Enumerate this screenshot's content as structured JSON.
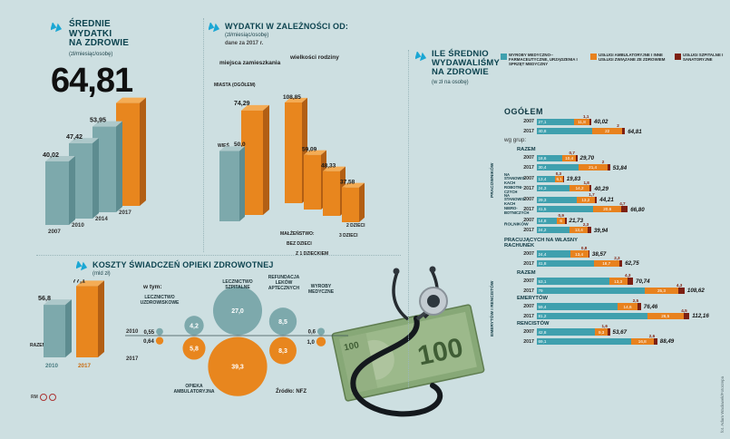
{
  "page": {
    "bg": "#cddfe1"
  },
  "avg_section": {
    "title_lines": [
      "ŚREDNIE",
      "WYDATKI",
      "NA ZDROWIE"
    ],
    "subtitle": "(zł/miesiąc/osobę)",
    "big_value": "64,81"
  },
  "depends_section": {
    "title": "WYDATKI W ZALEŻNOŚCI OD:",
    "subtitle": "(zł/miesiąc/osobę)",
    "note": "dane za 2017 r.",
    "residence_label": "miejsca zamieszkania",
    "family_label": "wielkości rodziny",
    "city_label": "MIASTA (OGÓŁEM)",
    "village_label": "WIEŚ",
    "family_prefix": "MAŁŻEŃSTWO:",
    "family_cats": [
      "BEZ DZIECI",
      "Z 1 DZIECKIEM",
      "2 DZIECI",
      "3 DZIECI"
    ]
  },
  "costs_section": {
    "title": "KOSZTY ŚWIADCZEŃ OPIEKI ZDROWOTNEJ",
    "unit": "(mld zł)",
    "razem_label": "RAZEM",
    "in_that": "w tym:",
    "years": [
      "2010",
      "2017"
    ],
    "cat_labels": [
      [
        "LECZNICTWO",
        "UZDROWISKOWE"
      ],
      [
        "OPIEKA",
        "AMBULATORYJNA"
      ],
      [
        "LECZNICTWO",
        "SZPITALNE"
      ],
      [
        "REFUNDACJA",
        "LEKÓW",
        "APTECZNYCH"
      ],
      [
        "WYROBY",
        "MEDYCZNE"
      ]
    ],
    "source": "Źródło: NFZ"
  },
  "spending_section": {
    "title_lines": [
      "ILE ŚREDNIO",
      "WYDAWALIŚMY",
      "NA ZDROWIE"
    ],
    "subtitle": "(w zł na osobę)",
    "wg_grup": "wg grup:",
    "legend": [
      {
        "label": "WYROBY MEDYCZNO--FARMACEUTYCZNE, URZĄDZENIA I SPRZĘT MEDYCZNY",
        "color": "#3fa0ae"
      },
      {
        "label": "USŁUGI AMBULATORYJNE I INNE USŁUGI ZWIĄZANE ZE ZDROWIEM",
        "color": "#e8821e"
      },
      {
        "label": "USŁUGI SZPITALNE I SANATORYJNE",
        "color": "#7d2012"
      }
    ]
  },
  "photo": {
    "banknote_value": "100"
  },
  "credits": {
    "left": "RM",
    "right": "fot. Adam Wacławek/Fotorzepa"
  },
  "chart_data": [
    {
      "id": "avg-spending",
      "type": "bar",
      "title": "ŚREDNIE WYDATKI NA ZDROWIE (zł/miesiąc/osobę)",
      "categories": [
        "2007",
        "2010",
        "2014",
        "2017"
      ],
      "values": [
        40.02,
        47.42,
        53.95,
        64.81
      ],
      "labels": [
        "40,02",
        "47,42",
        "53,95",
        ""
      ],
      "highlight_category": "2017"
    },
    {
      "id": "by-residence",
      "type": "bar",
      "title": "wydatki wg miejsca zamieszkania, 2017 (zł/miesiąc/osobę)",
      "categories": [
        "WIEŚ",
        "MIASTA (OGÓŁEM)"
      ],
      "values": [
        50.0,
        74.29
      ],
      "labels": [
        "50,0",
        "74,29"
      ]
    },
    {
      "id": "by-family-size",
      "type": "bar",
      "title": "wydatki wg wielkości rodziny, 2017 (zł/miesiąc/osobę)",
      "categories": [
        "MAŁŻEŃSTWO BEZ DZIECI",
        "Z 1 DZIECKIEM",
        "2 DZIECI",
        "3 DZIECI"
      ],
      "values": [
        108.85,
        59.09,
        48.33,
        37.58
      ],
      "labels": [
        "108,85",
        "59,09",
        "48,33",
        "37,58"
      ]
    },
    {
      "id": "costs-nfz",
      "type": "bubble",
      "title": "KOSZTY ŚWIADCZEŃ OPIEKI ZDROWOTNEJ (mld zł)",
      "categories": [
        "RAZEM",
        "LECZNICTWO UZDROWISKOWE",
        "OPIEKA AMBULATORYJNA",
        "LECZNICTWO SZPITALNE",
        "REFUNDACJA LEKÓW APTECZNYCH",
        "WYROBY MEDYCZNE"
      ],
      "series": [
        {
          "name": "2010",
          "values": [
            56.8,
            0.55,
            4.2,
            27.0,
            8.5,
            0.6
          ],
          "labels": [
            "56,8",
            "0,55",
            "4,2",
            "27,0",
            "8,5",
            "0,6"
          ]
        },
        {
          "name": "2017",
          "values": [
            77.1,
            0.64,
            5.8,
            39.3,
            8.3,
            1.0
          ],
          "labels": [
            "77,1",
            "0,64",
            "5,8",
            "39,3",
            "8,3",
            "1,0"
          ]
        }
      ],
      "source": "NFZ"
    },
    {
      "id": "avg-by-group",
      "type": "stacked-bar",
      "title": "ILE ŚREDNIO WYDAWALIŚMY NA ZDROWIE (w zł na osobę)",
      "segment_names": [
        "wyroby medyczno-farmaceutyczne",
        "usługi ambulatoryjne",
        "usługi szpitalne i sanatoryjne"
      ],
      "colors": [
        "#3fa0ae",
        "#e8821e",
        "#7d2012"
      ],
      "blocks": [
        {
          "type": "header",
          "size": "big",
          "text": "OGÓŁEM"
        },
        {
          "type": "rows",
          "rows": [
            {
              "year": "2007",
              "seg": [
                27.1,
                11.8,
                1.1
              ],
              "labels": [
                "27,1",
                "11,8",
                "1,1"
              ],
              "total": "40,02"
            },
            {
              "year": "2017",
              "seg": [
                40.8,
                22.0,
                2.0
              ],
              "labels": [
                "40,8",
                "22",
                "2"
              ],
              "total": "64,81"
            }
          ]
        },
        {
          "type": "header",
          "size": "plain",
          "text": "wg grup:"
        },
        {
          "type": "group",
          "vlabel": "PRACOWNIKÓW",
          "blocks": [
            {
              "type": "header",
              "size": "sub",
              "text": "RAZEM"
            },
            {
              "type": "rows",
              "rows": [
                {
                  "year": "2007",
                  "seg": [
                    18.6,
                    10.4,
                    0.7
                  ],
                  "labels": [
                    "18,6",
                    "10,4",
                    "0,7"
                  ],
                  "total": "29,70"
                },
                {
                  "year": "2017",
                  "seg": [
                    30.4,
                    21.4,
                    2.0
                  ],
                  "labels": [
                    "30,4",
                    "21,4",
                    "2"
                  ],
                  "total": "53,84"
                }
              ]
            },
            {
              "type": "siderows",
              "label": "NA STANOWIS- KACH ROBOTNI- CZYCH",
              "rows": [
                {
                  "year": "2007",
                  "seg": [
                    13.4,
                    6.1,
                    0.3
                  ],
                  "labels": [
                    "13,4",
                    "6,1",
                    "0,3"
                  ],
                  "total": "19,83"
                },
                {
                  "year": "2017",
                  "seg": [
                    24.3,
                    14.2,
                    1.8
                  ],
                  "labels": [
                    "24,3",
                    "14,2",
                    "1,8"
                  ],
                  "total": "40,29"
                }
              ]
            },
            {
              "type": "siderows",
              "label": "NA STANOWIS- KACH NIERO- BOTNICZYCH",
              "rows": [
                {
                  "year": "2007",
                  "seg": [
                    29.3,
                    13.2,
                    1.7
                  ],
                  "labels": [
                    "29,3",
                    "13,2",
                    "1,7"
                  ],
                  "total": "44,21"
                },
                {
                  "year": "2017",
                  "seg": [
                    41.5,
                    20.6,
                    4.7
                  ],
                  "labels": [
                    "41,5",
                    "20,6",
                    "4,7"
                  ],
                  "total": "66,80"
                }
              ]
            }
          ]
        },
        {
          "type": "siderows",
          "bold": true,
          "label": "ROLNIKÓW",
          "rows": [
            {
              "year": "2007",
              "seg": [
                14.8,
                6.0,
                0.9
              ],
              "labels": [
                "14,8",
                "6",
                "0,9"
              ],
              "total": "21,73"
            },
            {
              "year": "2017",
              "seg": [
                24.2,
                13.4,
                2.3
              ],
              "labels": [
                "24,2",
                "13,4",
                "2,3"
              ],
              "total": "39,94"
            }
          ]
        },
        {
          "type": "header2",
          "lines": [
            "PRACUJĄCYCH NA WŁASNY",
            "RACHUNEK"
          ]
        },
        {
          "type": "rows",
          "rows": [
            {
              "year": "2007",
              "seg": [
                24.4,
                13.4,
                0.8
              ],
              "labels": [
                "24,4",
                "13,4",
                "0,8"
              ],
              "total": "38,57"
            },
            {
              "year": "2017",
              "seg": [
                41.8,
                18.7,
                2.3
              ],
              "labels": [
                "41,8",
                "18,7",
                "2,3"
              ],
              "total": "62,75"
            }
          ]
        },
        {
          "type": "group",
          "vlabel": "EMERYTÓW I RENCISTÓW",
          "blocks": [
            {
              "type": "header",
              "size": "sub",
              "text": "RAZEM"
            },
            {
              "type": "rows",
              "rows": [
                {
                  "year": "2007",
                  "seg": [
                    53.1,
                    13.3,
                    4.3
                  ],
                  "labels": [
                    "53,1",
                    "13,3",
                    "4,3"
                  ],
                  "total": "70,74"
                },
                {
                  "year": "2017",
                  "seg": [
                    79.0,
                    25.3,
                    4.3
                  ],
                  "labels": [
                    "79",
                    "25,3",
                    "4,3"
                  ],
                  "total": "108,62"
                }
              ]
            },
            {
              "type": "header",
              "size": "sub",
              "text": "EMERYTÓW"
            },
            {
              "type": "rows",
              "rows": [
                {
                  "year": "2007",
                  "seg": [
                    59.4,
                    14.6,
                    2.5
                  ],
                  "labels": [
                    "59,4",
                    "14,6",
                    "2,5"
                  ],
                  "total": "76,46"
                },
                {
                  "year": "2017",
                  "seg": [
                    81.2,
                    26.5,
                    4.5
                  ],
                  "labels": [
                    "81,2",
                    "26,5",
                    "4,5"
                  ],
                  "total": "112,16"
                }
              ]
            },
            {
              "type": "header",
              "size": "sub",
              "text": "RENCISTÓW"
            },
            {
              "type": "rows",
              "rows": [
                {
                  "year": "2007",
                  "seg": [
                    42.8,
                    9.3,
                    1.6
                  ],
                  "labels": [
                    "42,8",
                    "9,3",
                    "1,6"
                  ],
                  "total": "53,67"
                },
                {
                  "year": "2017",
                  "seg": [
                    69.1,
                    16.8,
                    2.6
                  ],
                  "labels": [
                    "69,1",
                    "16,8",
                    "2,6"
                  ],
                  "total": "88,49"
                }
              ]
            }
          ]
        }
      ]
    }
  ]
}
